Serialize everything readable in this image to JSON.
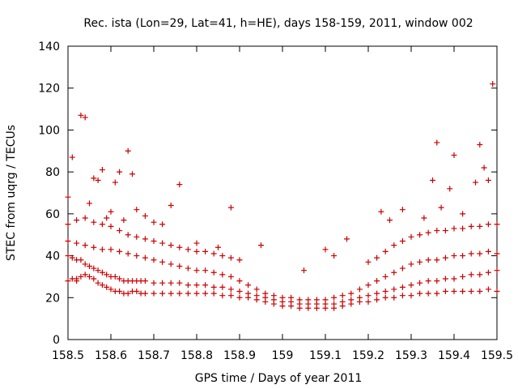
{
  "chart_data": {
    "type": "scatter",
    "title": "Rec. ista (Lon=29, Lat=41, h=HE), days 158-159, 2011, window 002",
    "xlabel": "GPS time / Days of year 2011",
    "ylabel": "STEC from uqrg / TECUs",
    "xlim": [
      158.5,
      159.5
    ],
    "ylim": [
      0,
      140
    ],
    "xticks": [
      "158.5",
      "158.6",
      "158.7",
      "158.8",
      "158.9",
      "159",
      "159.1",
      "159.2",
      "159.3",
      "159.4",
      "159.5"
    ],
    "yticks": [
      "0",
      "20",
      "40",
      "60",
      "80",
      "100",
      "120",
      "140"
    ],
    "grid": false,
    "legend": "none",
    "marker": "+",
    "color": "#cc0000",
    "series": [
      {
        "x": [
          158.5,
          158.51,
          158.52,
          158.52,
          158.53,
          158.54,
          158.55,
          158.56,
          158.57,
          158.58,
          158.59,
          158.6,
          158.61,
          158.62,
          158.63,
          158.64,
          158.65,
          158.66,
          158.67,
          158.68,
          158.7,
          158.72,
          158.74,
          158.76,
          158.78,
          158.8,
          158.82,
          158.84,
          158.86,
          158.88,
          158.9,
          158.92,
          158.94,
          158.96,
          158.98,
          159.0,
          159.02,
          159.04,
          159.06,
          159.08,
          159.1,
          159.12,
          159.14,
          159.16,
          159.18,
          159.2,
          159.22,
          159.24,
          159.26,
          159.28,
          159.3,
          159.32,
          159.34,
          159.36,
          159.38,
          159.4,
          159.42,
          159.44,
          159.46,
          159.48,
          159.5
        ],
        "y": [
          28,
          29,
          29,
          28,
          30,
          31,
          30,
          29,
          27,
          26,
          25,
          24,
          23,
          23,
          22,
          22,
          23,
          23,
          22,
          22,
          22,
          22,
          22,
          22,
          22,
          22,
          22,
          22,
          21,
          21,
          20,
          20,
          19,
          18,
          17,
          16,
          16,
          15,
          15,
          15,
          15,
          15,
          16,
          17,
          18,
          18,
          19,
          20,
          20,
          21,
          21,
          22,
          22,
          22,
          23,
          23,
          23,
          23,
          23,
          24,
          23
        ]
      },
      {
        "x": [
          158.5,
          158.51,
          158.52,
          158.53,
          158.54,
          158.55,
          158.56,
          158.57,
          158.58,
          158.59,
          158.6,
          158.61,
          158.62,
          158.63,
          158.64,
          158.65,
          158.66,
          158.67,
          158.68,
          158.7,
          158.72,
          158.74,
          158.76,
          158.78,
          158.8,
          158.82,
          158.84,
          158.86,
          158.88,
          158.9,
          158.92,
          158.94,
          158.96,
          158.98,
          159.0,
          159.02,
          159.04,
          159.06,
          159.08,
          159.1,
          159.12,
          159.14,
          159.16,
          159.18,
          159.2,
          159.22,
          159.24,
          159.26,
          159.28,
          159.3,
          159.32,
          159.34,
          159.36,
          159.38,
          159.4,
          159.42,
          159.44,
          159.46,
          159.48,
          159.5
        ],
        "y": [
          40,
          39,
          38,
          38,
          36,
          35,
          34,
          33,
          32,
          31,
          30,
          30,
          29,
          28,
          28,
          28,
          28,
          28,
          28,
          27,
          27,
          27,
          27,
          26,
          26,
          26,
          25,
          25,
          24,
          23,
          22,
          21,
          20,
          19,
          18,
          18,
          17,
          17,
          17,
          17,
          17,
          18,
          19,
          20,
          21,
          22,
          23,
          24,
          25,
          26,
          27,
          28,
          28,
          29,
          29,
          30,
          31,
          31,
          32,
          33
        ]
      },
      {
        "x": [
          158.5,
          158.52,
          158.54,
          158.56,
          158.58,
          158.6,
          158.62,
          158.64,
          158.66,
          158.68,
          158.7,
          158.72,
          158.74,
          158.76,
          158.78,
          158.8,
          158.82,
          158.84,
          158.86,
          158.88,
          158.9,
          158.92,
          158.94,
          158.96,
          158.98,
          159.0,
          159.02,
          159.04,
          159.06,
          159.08,
          159.1,
          159.12,
          159.14,
          159.16,
          159.18,
          159.2,
          159.22,
          159.24,
          159.26,
          159.28,
          159.3,
          159.32,
          159.34,
          159.36,
          159.38,
          159.4,
          159.42,
          159.44,
          159.46,
          159.48,
          159.5
        ],
        "y": [
          47,
          46,
          45,
          44,
          43,
          43,
          42,
          41,
          40,
          39,
          38,
          37,
          36,
          35,
          34,
          33,
          33,
          32,
          31,
          30,
          28,
          26,
          24,
          22,
          21,
          20,
          20,
          19,
          19,
          19,
          19,
          20,
          21,
          22,
          24,
          26,
          28,
          30,
          32,
          34,
          36,
          37,
          38,
          38,
          39,
          40,
          40,
          41,
          41,
          42,
          41
        ]
      },
      {
        "x": [
          158.5,
          158.52,
          158.54,
          158.56,
          158.58,
          158.6,
          158.62,
          158.64,
          158.66,
          158.68,
          158.7,
          158.72,
          158.74,
          158.76,
          158.78,
          158.8,
          158.82,
          158.84,
          158.86,
          158.88,
          158.9,
          159.2,
          159.22,
          159.24,
          159.26,
          159.28,
          159.3,
          159.32,
          159.34,
          159.36,
          159.38,
          159.4,
          159.42,
          159.44,
          159.46,
          159.48,
          159.5
        ],
        "y": [
          55,
          57,
          58,
          56,
          55,
          54,
          52,
          50,
          49,
          48,
          47,
          46,
          45,
          44,
          43,
          42,
          42,
          41,
          40,
          39,
          38,
          37,
          39,
          42,
          45,
          47,
          49,
          50,
          51,
          52,
          52,
          53,
          53,
          54,
          54,
          55,
          55
        ]
      },
      {
        "x": [
          158.5,
          158.51,
          158.53,
          158.54,
          158.55,
          158.56,
          158.57,
          158.58,
          158.59,
          158.6,
          158.61,
          158.62,
          158.63,
          158.64,
          158.65,
          158.66,
          158.68,
          158.7,
          158.72,
          158.74,
          158.76,
          158.8,
          158.85,
          158.88,
          158.95,
          159.05,
          159.1,
          159.12,
          159.15,
          159.23,
          159.25,
          159.28,
          159.33,
          159.35,
          159.36,
          159.37,
          159.39,
          159.4,
          159.42,
          159.45,
          159.46,
          159.47,
          159.48,
          159.49
        ],
        "y": [
          68,
          87,
          107,
          106,
          65,
          77,
          76,
          81,
          58,
          61,
          75,
          80,
          57,
          90,
          79,
          62,
          59,
          56,
          55,
          64,
          74,
          46,
          44,
          63,
          45,
          33,
          43,
          40,
          48,
          61,
          57,
          62,
          58,
          76,
          94,
          63,
          72,
          88,
          60,
          75,
          93,
          82,
          76,
          122
        ]
      }
    ]
  }
}
